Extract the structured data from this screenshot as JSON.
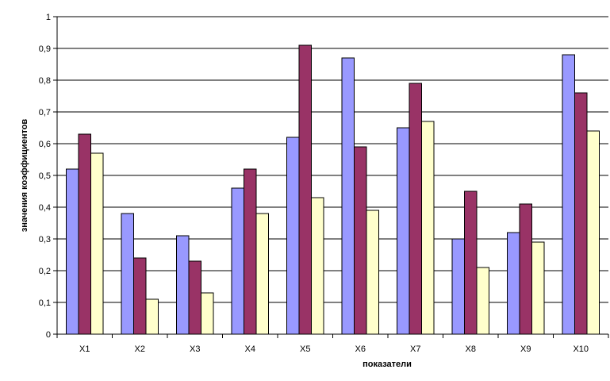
{
  "chart_data": {
    "type": "bar",
    "xlabel": "показатели",
    "ylabel": "значения коэффициентов",
    "ylim": [
      0,
      1
    ],
    "ytick_labels": [
      "0",
      "0,1",
      "0,2",
      "0,3",
      "0,4",
      "0,5",
      "0,6",
      "0,7",
      "0,8",
      "0,9",
      "1"
    ],
    "grid": "horizontal",
    "legend": "none",
    "categories": [
      "X1",
      "X2",
      "X3",
      "X4",
      "X5",
      "X6",
      "X7",
      "X8",
      "X9",
      "X10"
    ],
    "series": [
      {
        "color": "#9999ff",
        "values": [
          0.52,
          0.38,
          0.31,
          0.46,
          0.62,
          0.87,
          0.65,
          0.3,
          0.32,
          0.88
        ]
      },
      {
        "color": "#993366",
        "values": [
          0.63,
          0.24,
          0.23,
          0.52,
          0.91,
          0.59,
          0.79,
          0.45,
          0.41,
          0.76
        ]
      },
      {
        "color": "#ffffcc",
        "values": [
          0.57,
          0.11,
          0.13,
          0.38,
          0.43,
          0.39,
          0.67,
          0.21,
          0.29,
          0.64
        ]
      }
    ]
  }
}
